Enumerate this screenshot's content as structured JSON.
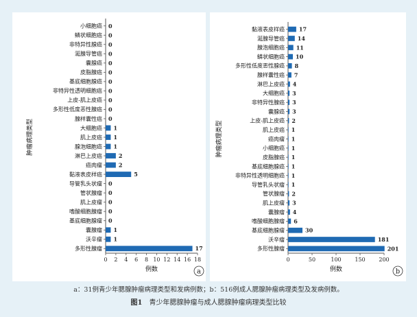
{
  "colors": {
    "bar": "#1f6ab3",
    "axis": "#555555",
    "text": "#222222"
  },
  "caption": {
    "subtitle": "a：31例青少年腮腺肿瘤病理类型和发病例数；b：516例成人腮腺肿瘤病理类型及发病例数。",
    "figure_label": "图1",
    "figure_title": "青少年腮腺肿瘤与成人腮腺肿瘤病理类型比较"
  },
  "chart_data": [
    {
      "type": "bar",
      "orientation": "horizontal",
      "panel_label": "a",
      "ylabel": "肿瘤病理类型",
      "xlabel": "例数",
      "xlim": [
        0,
        18
      ],
      "xticks": [
        0,
        2,
        4,
        6,
        8,
        10,
        12,
        14,
        16,
        18
      ],
      "categories": [
        "小细胞癌",
        "鳞状细胞癌",
        "非特异性腺癌",
        "涎腺导管癌",
        "囊腺癌",
        "皮脂腺癌",
        "基底细胞腺癌",
        "非特异性透明细胞癌",
        "上皮-肌上皮癌",
        "多形性低度恶性腺癌",
        "腺样囊性癌",
        "大细胞癌",
        "肌上皮癌",
        "腺泡细胞癌",
        "淋巴上皮癌",
        "癌肉瘤",
        "黏液表皮样癌",
        "导管乳头状瘤",
        "管状腺瘤",
        "肌上皮瘤",
        "嗜酸细胞腺瘤",
        "基底细胞腺瘤",
        "囊腺瘤",
        "沃辛瘤",
        "多形性腺瘤"
      ],
      "values": [
        0,
        0,
        0,
        0,
        0,
        0,
        0,
        0,
        0,
        0,
        0,
        1,
        1,
        1,
        2,
        2,
        5,
        0,
        0,
        0,
        0,
        0,
        1,
        1,
        17
      ]
    },
    {
      "type": "bar",
      "orientation": "horizontal",
      "panel_label": "b",
      "ylabel": "肿瘤病理类型",
      "xlabel": "例数",
      "xlim": [
        0,
        200
      ],
      "xticks": [
        0,
        50,
        100,
        150,
        200
      ],
      "categories": [
        "黏液表皮样癌",
        "涎腺导管癌",
        "腺泡细胞癌",
        "鳞状细胞癌",
        "多形性低度恶性腺癌",
        "腺样囊性癌",
        "淋巴上皮癌",
        "大细胞癌",
        "非特异性腺癌",
        "囊腺癌",
        "上皮-肌上皮癌",
        "肌上皮癌",
        "癌肉瘤",
        "小细胞癌",
        "皮脂腺癌",
        "基底细胞腺癌",
        "非特异性透明细胞癌",
        "导管乳头状瘤",
        "管状腺瘤",
        "肌上皮瘤",
        "囊腺瘤",
        "嗜酸细胞腺瘤",
        "基底细胞腺瘤",
        "沃辛瘤",
        "多形性腺瘤"
      ],
      "values": [
        17,
        14,
        11,
        10,
        8,
        7,
        4,
        3,
        3,
        3,
        2,
        1,
        1,
        1,
        1,
        1,
        1,
        1,
        2,
        3,
        4,
        6,
        30,
        181,
        201
      ]
    }
  ]
}
